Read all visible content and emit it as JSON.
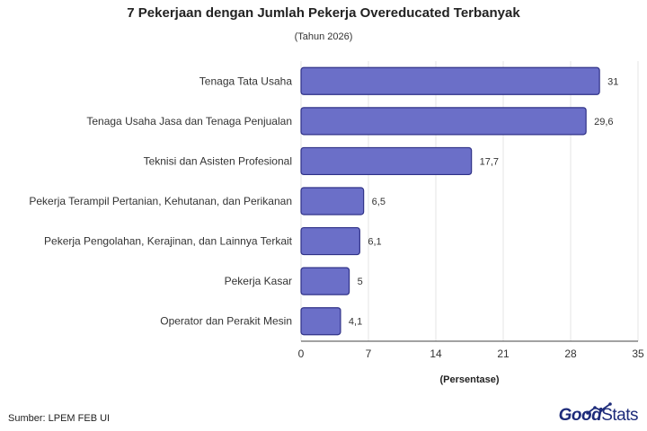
{
  "title": "7 Pekerjaan dengan Jumlah Pekerja Overeducated Terbanyak",
  "subtitle": "(Tahun 2026)",
  "source": "Sumber: LPEM FEB UI",
  "brand": {
    "part1": "Good",
    "part2": "Stats",
    "icon": "trend-up-icon"
  },
  "colors": {
    "bar": "#6b6fc8",
    "bar_stroke": "#2f3187",
    "grid": "#e6e6e6",
    "axis": "#444444"
  },
  "chart_data": {
    "type": "bar",
    "orientation": "horizontal",
    "categories": [
      "Tenaga Tata Usaha",
      "Tenaga Usaha Jasa dan Tenaga Penjualan",
      "Teknisi dan Asisten Profesional",
      "Pekerja Terampil Pertanian, Kehutanan, dan Perikanan",
      "Pekerja Pengolahan, Kerajinan, dan Lainnya Terkait",
      "Pekerja Kasar",
      "Operator dan Perakit Mesin"
    ],
    "values": [
      31,
      29.6,
      17.7,
      6.5,
      6.1,
      5,
      4.1
    ],
    "value_labels": [
      "31",
      "29,6",
      "17,7",
      "6,5",
      "6,1",
      "5",
      "4,1"
    ],
    "xlabel": "(Persentase)",
    "xlim": [
      0,
      35
    ],
    "xticks": [
      0,
      7,
      14,
      21,
      28,
      35
    ],
    "grid": true
  }
}
